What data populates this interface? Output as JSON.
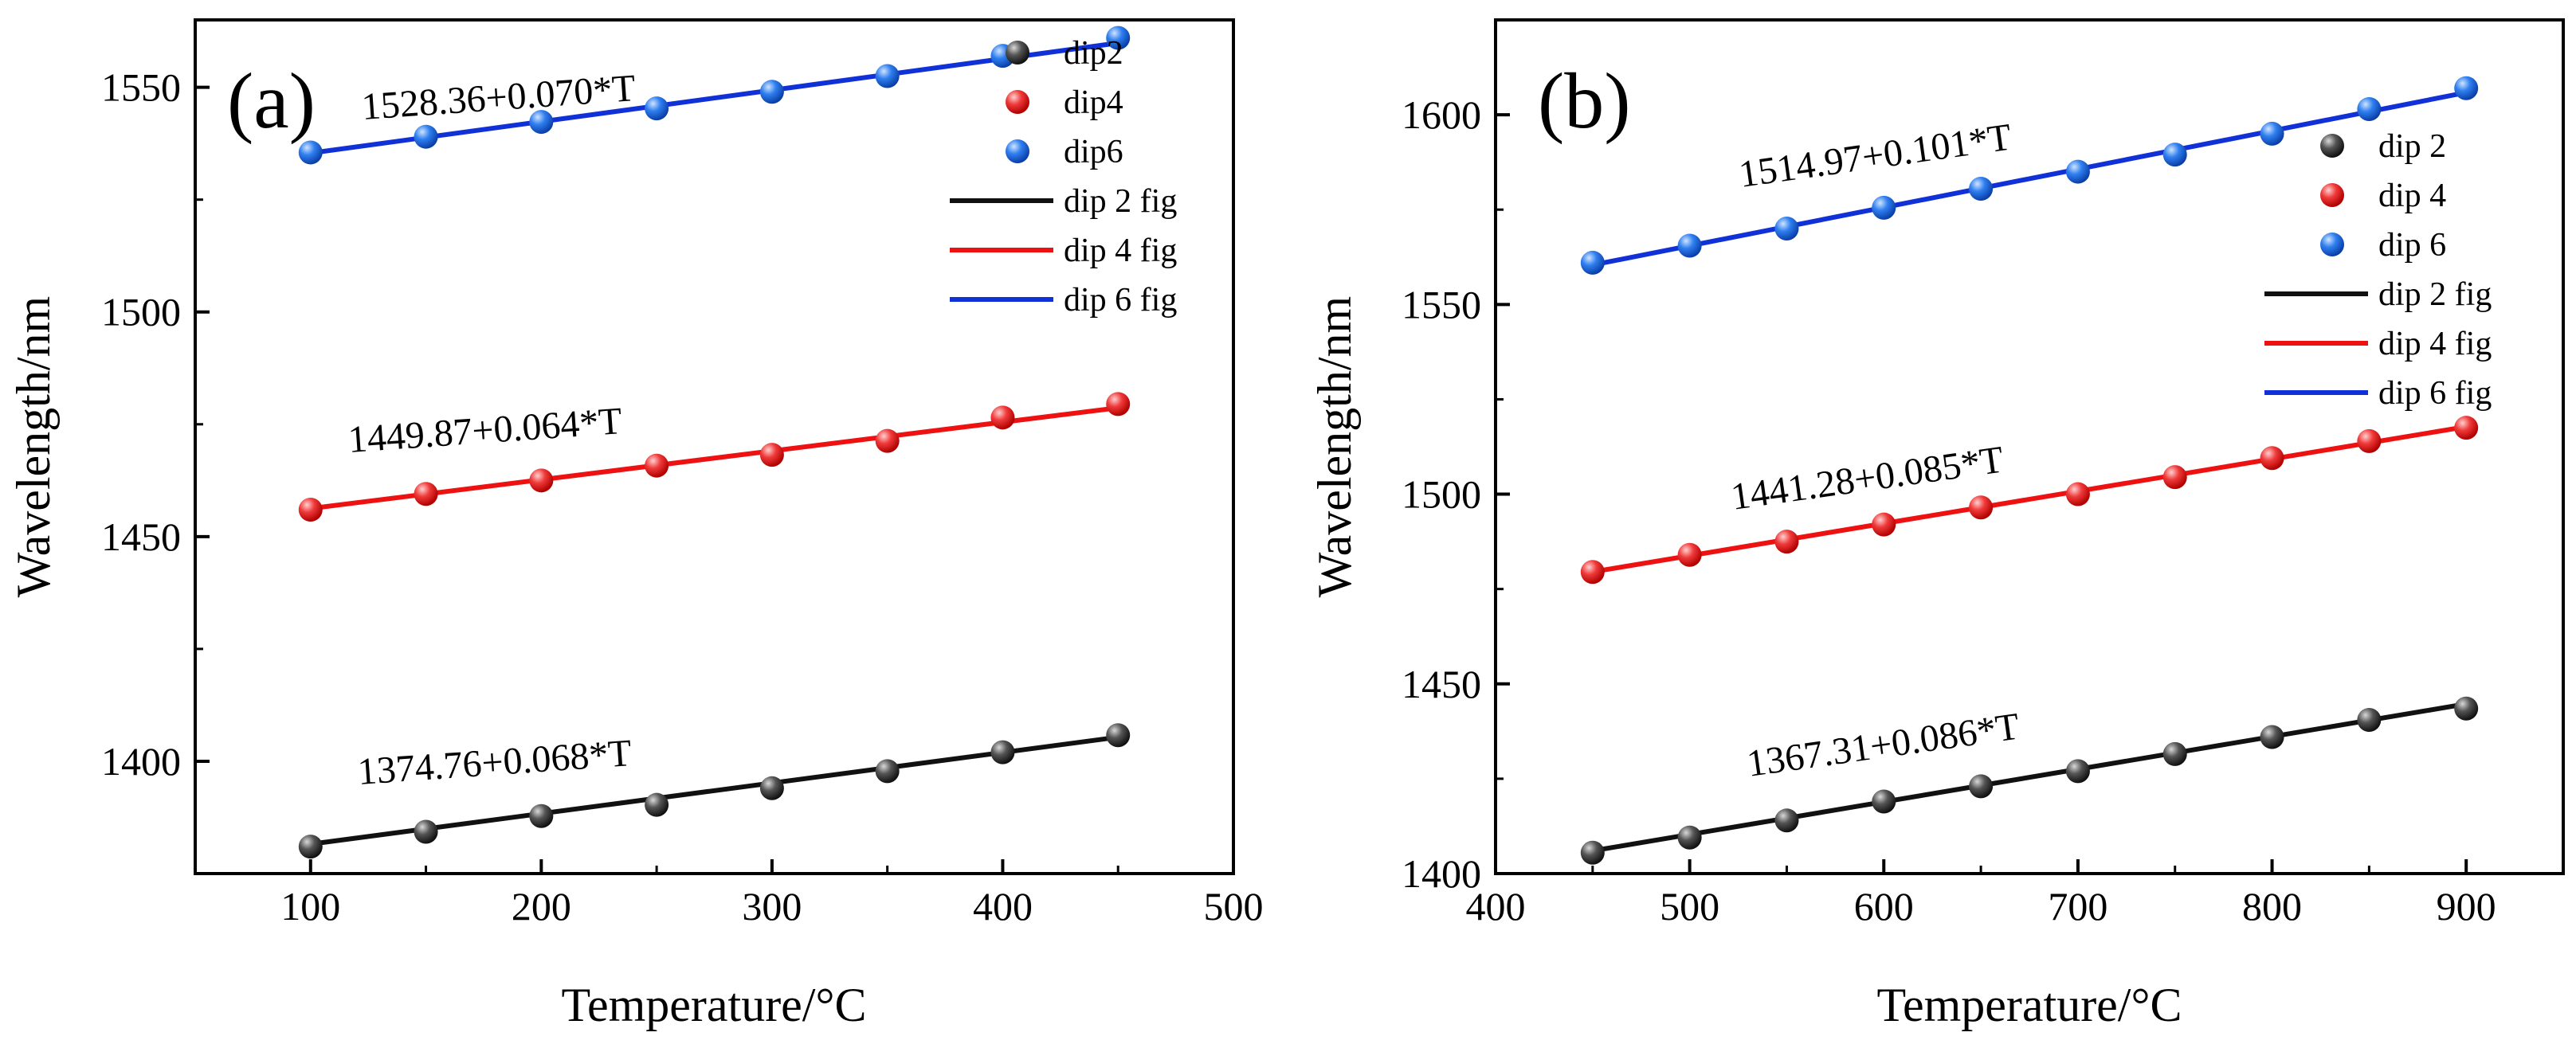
{
  "chart_data": [
    {
      "type": "scatter",
      "panel_label": "(a)",
      "xlabel": "Temperature/°C",
      "ylabel": "Wavelength/nm",
      "xlim": [
        50,
        500
      ],
      "ylim": [
        1375,
        1565
      ],
      "xticks": [
        100,
        200,
        300,
        400,
        500
      ],
      "yticks": [
        1400,
        1450,
        1500,
        1550
      ],
      "x": [
        100,
        150,
        200,
        250,
        300,
        350,
        400,
        450
      ],
      "series": [
        {
          "name": "dip2",
          "fit_name": "dip 2 fig",
          "color": "#111111",
          "values": [
            1381.0,
            1384.3,
            1387.8,
            1390.3,
            1394.0,
            1397.8,
            1402.0,
            1405.8
          ],
          "fit": {
            "intercept": 1374.76,
            "slope": 0.068
          },
          "equation": "1374.76+0.068*T"
        },
        {
          "name": "dip4",
          "fit_name": "dip 4 fig",
          "color": "#ee1111",
          "values": [
            1456.0,
            1459.5,
            1462.5,
            1465.8,
            1468.2,
            1471.3,
            1476.5,
            1479.5
          ],
          "fit": {
            "intercept": 1449.87,
            "slope": 0.064
          },
          "equation": "1449.87+0.064*T"
        },
        {
          "name": "dip6",
          "fit_name": "dip 6 fig",
          "color": "#1030d8",
          "values": [
            1535.5,
            1539.0,
            1542.3,
            1545.3,
            1549.0,
            1552.5,
            1557.0,
            1561.0
          ],
          "fit": {
            "intercept": 1528.36,
            "slope": 0.07
          },
          "equation": "1528.36+0.070*T"
        }
      ]
    },
    {
      "type": "scatter",
      "panel_label": "(b)",
      "xlabel": "Temperature/°C",
      "ylabel": "Wavelength/nm",
      "xlim": [
        400,
        950
      ],
      "ylim": [
        1400,
        1625
      ],
      "xticks": [
        400,
        500,
        600,
        700,
        800,
        900
      ],
      "yticks": [
        1400,
        1450,
        1500,
        1550,
        1600
      ],
      "x": [
        450,
        500,
        550,
        600,
        650,
        700,
        750,
        800,
        850,
        900
      ],
      "series": [
        {
          "name": "dip 2",
          "fit_name": "dip 2 fig",
          "color": "#111111",
          "values": [
            1405.5,
            1409.5,
            1414.0,
            1419.0,
            1423.0,
            1427.0,
            1431.5,
            1436.0,
            1440.5,
            1443.5
          ],
          "fit": {
            "intercept": 1367.31,
            "slope": 0.086
          },
          "equation": "1367.31+0.086*T"
        },
        {
          "name": "dip 4",
          "fit_name": "dip 4 fig",
          "color": "#ee1111",
          "values": [
            1479.5,
            1484.0,
            1487.5,
            1492.0,
            1496.5,
            1500.0,
            1504.5,
            1509.5,
            1514.0,
            1517.5
          ],
          "fit": {
            "intercept": 1441.28,
            "slope": 0.085
          },
          "equation": "1441.28+0.085*T"
        },
        {
          "name": "dip 6",
          "fit_name": "dip 6 fig",
          "color": "#1030d8",
          "values": [
            1561.0,
            1565.5,
            1570.0,
            1575.5,
            1580.5,
            1585.0,
            1589.5,
            1595.0,
            1601.5,
            1607.0
          ],
          "fit": {
            "intercept": 1514.97,
            "slope": 0.101
          },
          "equation": "1514.97+0.101*T"
        }
      ]
    }
  ]
}
